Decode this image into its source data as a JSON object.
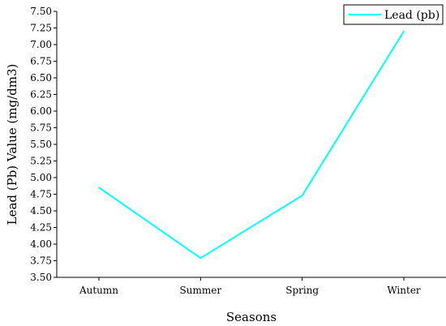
{
  "chart_data": {
    "type": "line",
    "title": "",
    "xlabel": "Seasons",
    "ylabel": "Lead (Pb) Value (mg/dm3)",
    "categories": [
      "Autumn",
      "Summer",
      "Spring",
      "Winter"
    ],
    "series": [
      {
        "name": "Lead (pb)",
        "color": "#00FFFF",
        "values": [
          4.85,
          3.79,
          4.73,
          7.2
        ]
      }
    ],
    "ylim": [
      3.5,
      7.5
    ],
    "yticks": [
      "3.50",
      "3.75",
      "4.00",
      "4.25",
      "4.50",
      "4.75",
      "5.00",
      "5.25",
      "5.50",
      "5.75",
      "6.00",
      "6.25",
      "6.50",
      "6.75",
      "7.00",
      "7.25",
      "7.50"
    ],
    "grid": false,
    "legend_position": "top-right"
  }
}
